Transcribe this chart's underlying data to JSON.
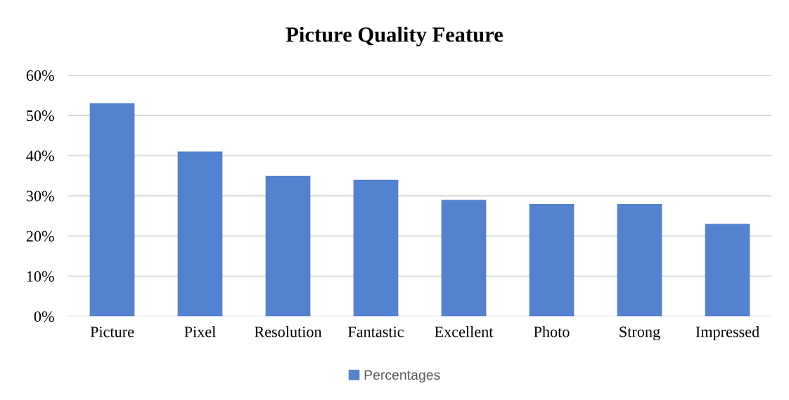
{
  "chart_data": {
    "type": "bar",
    "title": "Picture Quality Feature",
    "categories": [
      "Picture",
      "Pixel",
      "Resolution",
      "Fantastic",
      "Excellent",
      "Photo",
      "Strong",
      "Impressed"
    ],
    "series": [
      {
        "name": "Percentages",
        "color": "#5582cf",
        "values": [
          53,
          41,
          35,
          34,
          29,
          28,
          28,
          23
        ]
      }
    ],
    "ylim": [
      0,
      60
    ],
    "yticks": [
      {
        "value": 0,
        "label": "0%"
      },
      {
        "value": 10,
        "label": "10%"
      },
      {
        "value": 20,
        "label": "20%"
      },
      {
        "value": 30,
        "label": "30%"
      },
      {
        "value": 40,
        "label": "40%"
      },
      {
        "value": 50,
        "label": "50%"
      },
      {
        "value": 60,
        "label": "60%"
      }
    ],
    "grid": "y",
    "legend": "bottom"
  }
}
